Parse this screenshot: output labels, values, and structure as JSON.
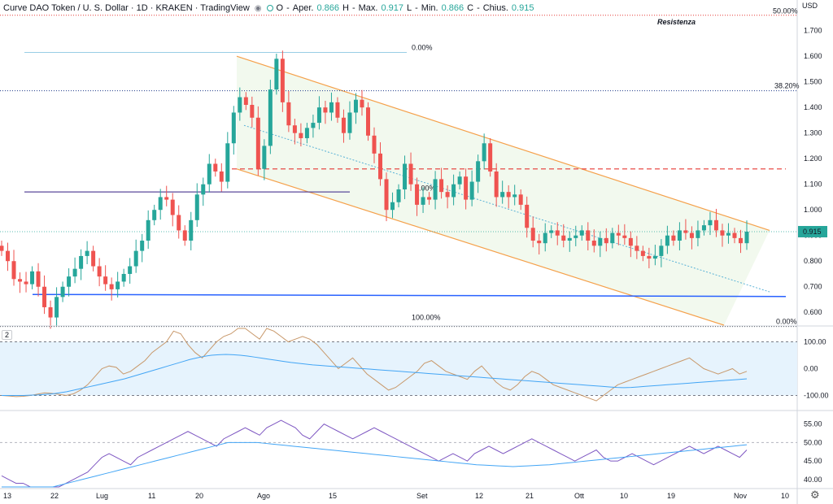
{
  "header": {
    "symbol_title": "Curve DAO Token / U. S. Dollar · 1D · KRAKEN · TradingView",
    "eye_icon": "eye-icon",
    "ohlc": {
      "open_label": "O",
      "open_name": "Aper.",
      "open": "0.866",
      "high_label": "H",
      "high_name": "Max.",
      "high": "0.917",
      "low_label": "L",
      "low_name": "Min.",
      "low": "0.866",
      "close_label": "C",
      "close_name": "Chius.",
      "close": "0.915"
    }
  },
  "currency_label": "USD",
  "pane_label": "2",
  "settings_icon": "gear-icon",
  "colors": {
    "up": "#26a69a",
    "down": "#ef5350",
    "channel": "#f5a04a",
    "support": "#2962ff",
    "fib": "#5ab2d6",
    "resistance": "#e53935"
  },
  "annotations": {
    "resistenza": "Resistenza",
    "fib_top_right": "50.00%",
    "fib_38": "38.20%",
    "fib_0_right": "0.00%",
    "fib_0_upper": "0.00%",
    "fib_100": "100.00%",
    "fib_mid": "0.00%"
  },
  "chart_data": [
    {
      "type": "candlestick",
      "title": "Curve DAO Token / U. S. Dollar · 1D · KRAKEN",
      "y_unit": "USD",
      "ylim": [
        0.55,
        1.775
      ],
      "y_ticks": [
        "1.700",
        "1.600",
        "1.500",
        "1.400",
        "1.300",
        "1.200",
        "1.100",
        "1.000",
        "0.900",
        "0.800",
        "0.700",
        "0.600"
      ],
      "last_price": "0.915",
      "x_ticks": [
        "13",
        "22",
        "Lug",
        "11",
        "20",
        "Ago",
        "15",
        "Set",
        "12",
        "21",
        "Ott",
        "10",
        "19",
        "Nov",
        "10"
      ],
      "close_series": [
        0.84,
        0.8,
        0.73,
        0.72,
        0.71,
        0.76,
        0.7,
        0.62,
        0.58,
        0.66,
        0.7,
        0.74,
        0.77,
        0.82,
        0.84,
        0.78,
        0.74,
        0.71,
        0.69,
        0.72,
        0.75,
        0.78,
        0.84,
        0.88,
        0.96,
        1.0,
        1.05,
        1.04,
        0.98,
        0.92,
        0.88,
        0.96,
        1.06,
        1.1,
        1.18,
        1.15,
        1.11,
        1.26,
        1.38,
        1.44,
        1.41,
        1.36,
        1.16,
        1.25,
        1.47,
        1.59,
        1.42,
        1.33,
        1.3,
        1.28,
        1.32,
        1.34,
        1.4,
        1.38,
        1.42,
        1.36,
        1.3,
        1.38,
        1.43,
        1.4,
        1.29,
        1.22,
        1.12,
        1.0,
        1.03,
        1.08,
        1.18,
        1.1,
        1.02,
        1.05,
        1.04,
        1.12,
        1.07,
        1.05,
        1.1,
        1.13,
        1.04,
        1.11,
        1.19,
        1.26,
        1.15,
        1.05,
        1.07,
        1.05,
        1.06,
        1.02,
        0.93,
        0.88,
        0.87,
        0.91,
        0.92,
        0.9,
        0.88,
        0.89,
        0.9,
        0.92,
        0.88,
        0.86,
        0.89,
        0.87,
        0.91,
        0.9,
        0.89,
        0.86,
        0.84,
        0.82,
        0.81,
        0.82,
        0.86,
        0.9,
        0.88,
        0.92,
        0.91,
        0.89,
        0.92,
        0.94,
        0.96,
        0.92,
        0.9,
        0.91,
        0.89,
        0.87,
        0.915
      ],
      "channel": {
        "upper_start": [
          "Lug 27",
          1.6
        ],
        "upper_end": [
          "Nov 4",
          0.92
        ],
        "lower_start": [
          "Lug 27",
          1.16
        ],
        "lower_end": [
          "Nov 3",
          0.55
        ]
      },
      "levels": {
        "support": 0.67,
        "resistance_dashed": 1.16,
        "purple_line": 1.07,
        "fib_38": 1.465,
        "fib_50": 1.76,
        "fib_0": 0.545
      }
    },
    {
      "type": "line",
      "title": "CCI",
      "y_ticks": [
        "100.00",
        "0.00",
        "-100.00"
      ],
      "ylim": [
        -150,
        150
      ],
      "series": [
        {
          "values": [
            -100,
            -102,
            -104,
            -103,
            -100,
            -95,
            -90,
            -92,
            -96,
            -100,
            -94,
            -80,
            -60,
            -30,
            0,
            10,
            5,
            -20,
            -10,
            10,
            30,
            60,
            80,
            100,
            140,
            130,
            90,
            60,
            40,
            70,
            100,
            120,
            130,
            150,
            160,
            130,
            110,
            150,
            140,
            120,
            100,
            110,
            120,
            110,
            90,
            60,
            30,
            0,
            20,
            40,
            10,
            -20,
            -40,
            -60,
            -80,
            -70,
            -50,
            -30,
            -10,
            20,
            30,
            10,
            -10,
            -20,
            -30,
            -40,
            -10,
            10,
            -20,
            -50,
            -70,
            -80,
            -60,
            -30,
            -10,
            -20,
            -40,
            -60,
            -70,
            -80,
            -90,
            -100,
            -110,
            -120,
            -100,
            -80,
            -60,
            -50,
            -40,
            -30,
            -20,
            -10,
            0,
            10,
            20,
            30,
            40,
            20,
            0,
            -10,
            -20,
            -10,
            0,
            -20,
            -10
          ]
        },
        {
          "values": [
            -100,
            -100,
            -100,
            -100,
            -99,
            -98,
            -96,
            -94,
            -90,
            -86,
            -80,
            -74,
            -68,
            -62,
            -56,
            -50,
            -44,
            -38,
            -30,
            -22,
            -14,
            -6,
            2,
            10,
            18,
            26,
            34,
            40,
            46,
            50,
            52,
            53,
            52,
            50,
            47,
            43,
            39,
            35,
            31,
            27,
            23,
            20,
            17,
            14,
            12,
            10,
            8,
            6,
            4,
            2,
            0,
            -2,
            -4,
            -6,
            -8,
            -10,
            -12,
            -14,
            -16,
            -18,
            -20,
            -22,
            -24,
            -26,
            -28,
            -30,
            -32,
            -34,
            -36,
            -38,
            -40,
            -42,
            -44,
            -46,
            -48,
            -50,
            -52,
            -54,
            -56,
            -58,
            -60,
            -62,
            -64,
            -66,
            -68,
            -70,
            -71,
            -70,
            -68,
            -66,
            -64,
            -62,
            -60,
            -58,
            -56,
            -54,
            -52,
            -50,
            -48,
            -46,
            -44,
            -42,
            -40,
            -38
          ]
        }
      ]
    },
    {
      "type": "line",
      "title": "RSI",
      "y_ticks": [
        "55.00",
        "50.00",
        "45.00",
        "40.00"
      ],
      "ylim": [
        38,
        58
      ],
      "series": [
        {
          "values": [
            41,
            40,
            39,
            39,
            38,
            38,
            38,
            37,
            38,
            39,
            40,
            41,
            42,
            44,
            46,
            47,
            46,
            45,
            44,
            46,
            47,
            48,
            49,
            50,
            51,
            52,
            53,
            52,
            51,
            50,
            49,
            51,
            52,
            53,
            54,
            53,
            52,
            54,
            55,
            56,
            55,
            54,
            52,
            51,
            53,
            55,
            54,
            53,
            52,
            51,
            52,
            53,
            54,
            53,
            52,
            51,
            50,
            49,
            48,
            47,
            46,
            45,
            46,
            47,
            46,
            45,
            47,
            48,
            49,
            48,
            47,
            48,
            49,
            50,
            51,
            50,
            49,
            48,
            47,
            46,
            45,
            46,
            47,
            48,
            46,
            45,
            45,
            46,
            47,
            46,
            45,
            44,
            45,
            46,
            47,
            48,
            49,
            48,
            47,
            48,
            49,
            48,
            47,
            46,
            48
          ]
        },
        {
          "values": [
            38,
            38,
            38,
            38,
            38,
            38,
            38,
            38,
            38.5,
            39,
            39.5,
            40,
            40.5,
            41,
            41.5,
            42,
            42.5,
            43,
            43.5,
            44,
            44.5,
            45,
            45.5,
            46,
            46.5,
            47,
            47.5,
            48,
            48.5,
            49,
            49.5,
            50,
            50,
            50,
            50,
            50,
            49.8,
            49.6,
            49.4,
            49.2,
            49,
            48.8,
            48.6,
            48.4,
            48.2,
            48,
            47.8,
            47.6,
            47.4,
            47.2,
            47,
            46.8,
            46.6,
            46.4,
            46.2,
            46,
            45.8,
            45.6,
            45.4,
            45.2,
            45,
            44.8,
            44.6,
            44.4,
            44.2,
            44,
            43.9,
            43.8,
            43.7,
            43.6,
            43.5,
            43.6,
            43.7,
            43.8,
            43.9,
            44,
            44.2,
            44.4,
            44.6,
            44.8,
            45,
            45.2,
            45.4,
            45.6,
            45.8,
            46,
            46.2,
            46.4,
            46.6,
            46.8,
            47,
            47.2,
            47.4,
            47.6,
            47.8,
            48,
            48.2,
            48.4,
            48.6,
            48.8,
            49,
            49.2,
            49.4
          ]
        }
      ]
    }
  ]
}
